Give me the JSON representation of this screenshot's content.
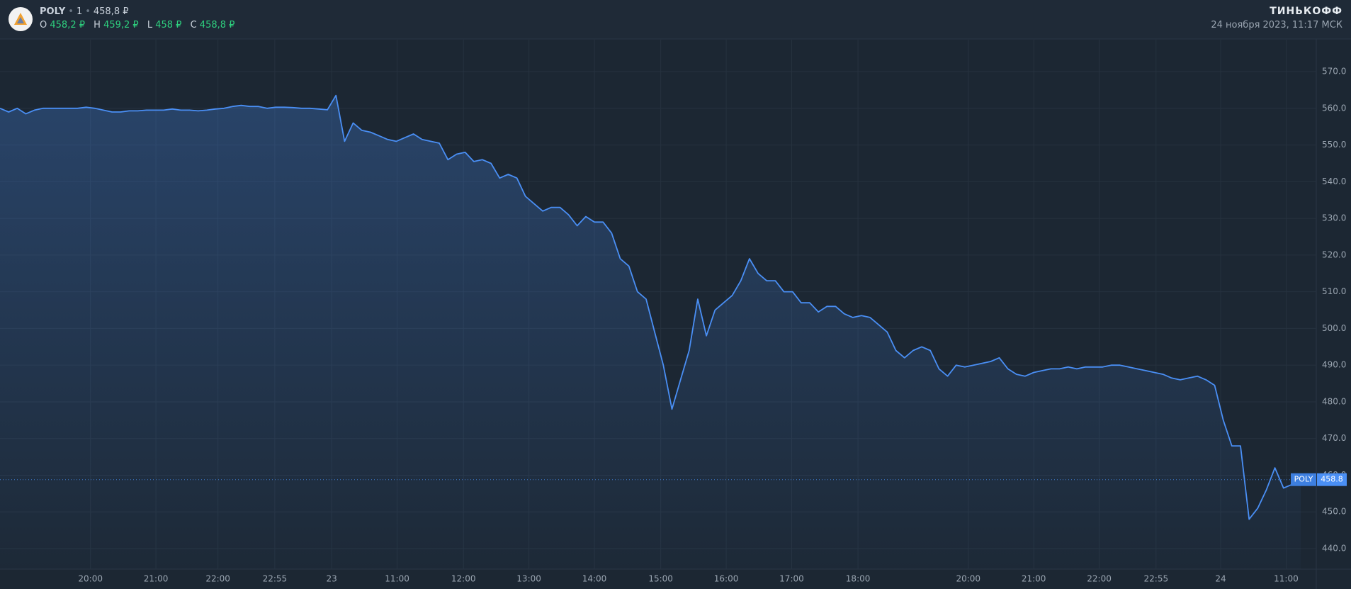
{
  "header": {
    "ticker": "POLY",
    "interval": "1",
    "price": "458,8 ₽",
    "ohlc": [
      {
        "key": "O",
        "value": "458,2 ₽"
      },
      {
        "key": "H",
        "value": "459,2 ₽"
      },
      {
        "key": "L",
        "value": "458 ₽"
      },
      {
        "key": "C",
        "value": "458,8 ₽"
      }
    ],
    "brand": "ТИНЬКОФФ",
    "timestamp": "24 ноября 2023, 11:17 МСК"
  },
  "chart_data": {
    "type": "line",
    "color": "#4a8ff5",
    "grid": true,
    "x": [
      0,
      1,
      2,
      3,
      4,
      5,
      6,
      7,
      8,
      9,
      10,
      11,
      12,
      13,
      14,
      15,
      16,
      17,
      18,
      19,
      20,
      21,
      22,
      23,
      24,
      25,
      26,
      27,
      28,
      29,
      30,
      31,
      32,
      33,
      34,
      35,
      36,
      37,
      38,
      39,
      40,
      41,
      42,
      43,
      44,
      45,
      46,
      47,
      48,
      49,
      50,
      51,
      52,
      53,
      54,
      55,
      56,
      57,
      58,
      59,
      60,
      61,
      62,
      63,
      64,
      65,
      66,
      67,
      68,
      69,
      70,
      71,
      72,
      73,
      74,
      75,
      76,
      77,
      78,
      79,
      80,
      81,
      82,
      83,
      84,
      85,
      86,
      87,
      88,
      89,
      90,
      91,
      92,
      93,
      94,
      95,
      96,
      97,
      98,
      99,
      100,
      101,
      102,
      103,
      104,
      105,
      106,
      107,
      108,
      109,
      110,
      111,
      112,
      113,
      114,
      115,
      116,
      117,
      118,
      119,
      120,
      121,
      122,
      123,
      124,
      125,
      126,
      127,
      128,
      129,
      130,
      131,
      132,
      133,
      134,
      135,
      136,
      137,
      138,
      139,
      140,
      141,
      142,
      143,
      144,
      145,
      146,
      147,
      148,
      149,
      150,
      151
    ],
    "values": [
      560,
      559,
      560,
      558.5,
      559.5,
      560,
      560,
      560,
      560,
      560,
      560.3,
      560,
      559.5,
      559,
      559,
      559.3,
      559.3,
      559.5,
      559.5,
      559.5,
      559.8,
      559.5,
      559.5,
      559.3,
      559.5,
      559.8,
      560,
      560.5,
      560.8,
      560.5,
      560.5,
      560,
      560.3,
      560.3,
      560.2,
      560,
      560,
      559.8,
      559.6,
      563.5,
      551,
      556,
      554,
      553.5,
      552.5,
      551.5,
      551,
      552,
      553,
      551.5,
      551,
      550.5,
      546,
      547.5,
      548,
      545.5,
      546,
      545,
      541,
      542,
      541,
      536,
      534,
      532,
      533,
      533,
      531,
      528,
      530.5,
      529,
      529,
      526,
      519,
      517,
      510,
      508,
      499,
      490,
      478,
      486,
      494,
      508,
      498,
      505,
      507,
      509,
      513,
      519,
      515,
      513,
      513,
      510,
      510,
      507,
      507,
      504.5,
      506,
      506,
      504,
      503,
      503.5,
      503,
      501,
      499,
      494,
      492,
      494,
      495,
      494,
      489,
      487,
      490,
      489.5,
      490,
      490.5,
      491,
      492,
      489,
      487.5,
      487,
      488,
      488.5,
      489,
      489,
      489.5,
      489,
      489.5,
      489.5,
      489.5,
      490,
      490,
      489.5,
      489,
      488.5,
      488,
      487.5,
      486.5,
      486,
      486.5,
      487,
      486,
      484.5,
      475,
      468,
      468,
      448,
      451,
      456,
      462,
      456.5,
      457.5,
      458
    ],
    "xlim": [
      0,
      152.8
    ],
    "xticks": [
      {
        "value": 10.5,
        "label": "20:00"
      },
      {
        "value": 18.1,
        "label": "21:00"
      },
      {
        "value": 25.3,
        "label": "22:00"
      },
      {
        "value": 31.9,
        "label": "22:55"
      },
      {
        "value": 38.5,
        "label": "23"
      },
      {
        "value": 46.1,
        "label": "11:00"
      },
      {
        "value": 53.8,
        "label": "12:00"
      },
      {
        "value": 61.4,
        "label": "13:00"
      },
      {
        "value": 69,
        "label": "14:00"
      },
      {
        "value": 76.7,
        "label": "15:00"
      },
      {
        "value": 84.3,
        "label": "16:00"
      },
      {
        "value": 91.9,
        "label": "17:00"
      },
      {
        "value": 99.6,
        "label": "18:00"
      },
      {
        "value": 112.4,
        "label": "20:00"
      },
      {
        "value": 120,
        "label": "21:00"
      },
      {
        "value": 127.6,
        "label": "22:00"
      },
      {
        "value": 134.2,
        "label": "22:55"
      },
      {
        "value": 141.7,
        "label": "24"
      },
      {
        "value": 149.3,
        "label": "11:00"
      }
    ],
    "ylim": [
      434.4,
      578.7
    ],
    "yticks": [
      {
        "value": 440,
        "label": "440.0"
      },
      {
        "value": 450,
        "label": "450.0"
      },
      {
        "value": 460,
        "label": "460.0"
      },
      {
        "value": 470,
        "label": "470.0"
      },
      {
        "value": 480,
        "label": "480.0"
      },
      {
        "value": 490,
        "label": "490.0"
      },
      {
        "value": 500,
        "label": "500.0"
      },
      {
        "value": 510,
        "label": "510.0"
      },
      {
        "value": 520,
        "label": "520.0"
      },
      {
        "value": 530,
        "label": "530.0"
      },
      {
        "value": 540,
        "label": "540.0"
      },
      {
        "value": 550,
        "label": "550.0"
      },
      {
        "value": 560,
        "label": "560.0"
      },
      {
        "value": 570,
        "label": "570.0"
      }
    ],
    "last_price": {
      "label": "POLY",
      "value": 458.8
    }
  }
}
